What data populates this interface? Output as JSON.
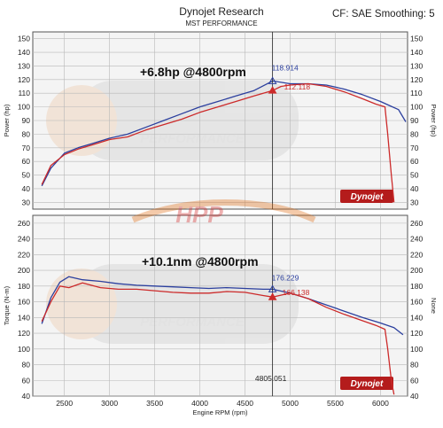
{
  "header": {
    "title": "Dynojet Research",
    "subtitle": "MST PERFORMANCE",
    "correction": "CF: SAE  Smoothing: 5"
  },
  "watermarks": {
    "logo_text": "HPP",
    "brand_text": "PERFORMANCE",
    "dynojet_badge": "Dynojet"
  },
  "colors": {
    "series_blue": "#2b3f9e",
    "series_red": "#cc2a2a",
    "cursor": "#222222",
    "grid": "#b8b8b8",
    "plot_bg": "#f4f4f4"
  },
  "chart_data": [
    {
      "type": "line",
      "panel": "power",
      "ylabel": "Power (hp)",
      "ylabel_right": "Power (hp)",
      "ylim": [
        25,
        155
      ],
      "yticks": [
        30,
        40,
        50,
        60,
        70,
        80,
        90,
        100,
        110,
        120,
        130,
        140,
        150
      ],
      "xlim": [
        2150,
        6300
      ],
      "xticks": [
        2500,
        3000,
        3500,
        4000,
        4500,
        5000,
        5500,
        6000
      ],
      "grid": true,
      "annotation": "+6.8hp @4800rpm",
      "cursor_rpm": 4805.051,
      "cursor_labels": [
        "118.914",
        "112.118"
      ],
      "series": [
        {
          "color": "blue",
          "x": [
            2250,
            2350,
            2500,
            2650,
            2800,
            3000,
            3200,
            3400,
            3600,
            3800,
            4000,
            4200,
            4400,
            4600,
            4805,
            4900,
            5000,
            5200,
            5400,
            5600,
            5800,
            6000,
            6100,
            6200,
            6280
          ],
          "y": [
            42,
            55,
            66,
            70,
            73,
            77,
            80,
            85,
            90,
            95,
            100,
            104,
            108,
            112,
            119,
            118,
            117,
            117,
            116,
            113,
            109,
            104,
            101,
            98,
            89
          ]
        },
        {
          "color": "red",
          "x": [
            2250,
            2350,
            2500,
            2650,
            2800,
            3000,
            3200,
            3400,
            3600,
            3800,
            4000,
            4200,
            4400,
            4600,
            4805,
            4900,
            5000,
            5200,
            5400,
            5600,
            5800,
            5950,
            6050,
            6080,
            6120,
            6150
          ],
          "y": [
            43,
            57,
            65,
            69,
            72,
            76,
            78,
            83,
            87,
            91,
            96,
            100,
            104,
            108,
            112,
            115,
            116,
            117,
            115,
            111,
            106,
            102,
            100,
            80,
            50,
            30
          ]
        }
      ]
    },
    {
      "type": "line",
      "panel": "torque",
      "xlabel": "Engine RPM (rpm)",
      "ylabel": "Torque (N-m)",
      "ylabel_right": "None",
      "ylim": [
        40,
        270
      ],
      "yticks": [
        40,
        60,
        80,
        100,
        120,
        140,
        160,
        180,
        200,
        220,
        240,
        260
      ],
      "xlim": [
        2150,
        6300
      ],
      "xticks": [
        2500,
        3000,
        3500,
        4000,
        4500,
        5000,
        5500,
        6000
      ],
      "grid": true,
      "annotation": "+10.1nm @4800rpm",
      "cursor_rpm": 4805.051,
      "cursor_labels": [
        "176.229",
        "166.138",
        "4805.051"
      ],
      "series": [
        {
          "color": "blue",
          "x": [
            2250,
            2350,
            2450,
            2550,
            2700,
            2900,
            3100,
            3300,
            3500,
            3700,
            3900,
            4100,
            4300,
            4500,
            4700,
            4805,
            5000,
            5200,
            5400,
            5600,
            5800,
            6000,
            6150,
            6250
          ],
          "y": [
            132,
            165,
            185,
            192,
            188,
            186,
            183,
            181,
            180,
            179,
            178,
            177,
            178,
            177,
            176,
            176,
            171,
            164,
            156,
            148,
            140,
            133,
            127,
            118
          ]
        },
        {
          "color": "red",
          "x": [
            2250,
            2350,
            2450,
            2550,
            2700,
            2900,
            3100,
            3300,
            3500,
            3700,
            3900,
            4100,
            4300,
            4500,
            4700,
            4805,
            5000,
            5200,
            5400,
            5600,
            5800,
            5950,
            6050,
            6080,
            6120,
            6150
          ],
          "y": [
            135,
            160,
            180,
            178,
            184,
            178,
            176,
            176,
            174,
            172,
            171,
            171,
            173,
            172,
            168,
            166,
            171,
            164,
            153,
            144,
            136,
            130,
            125,
            100,
            60,
            42
          ]
        }
      ]
    }
  ]
}
